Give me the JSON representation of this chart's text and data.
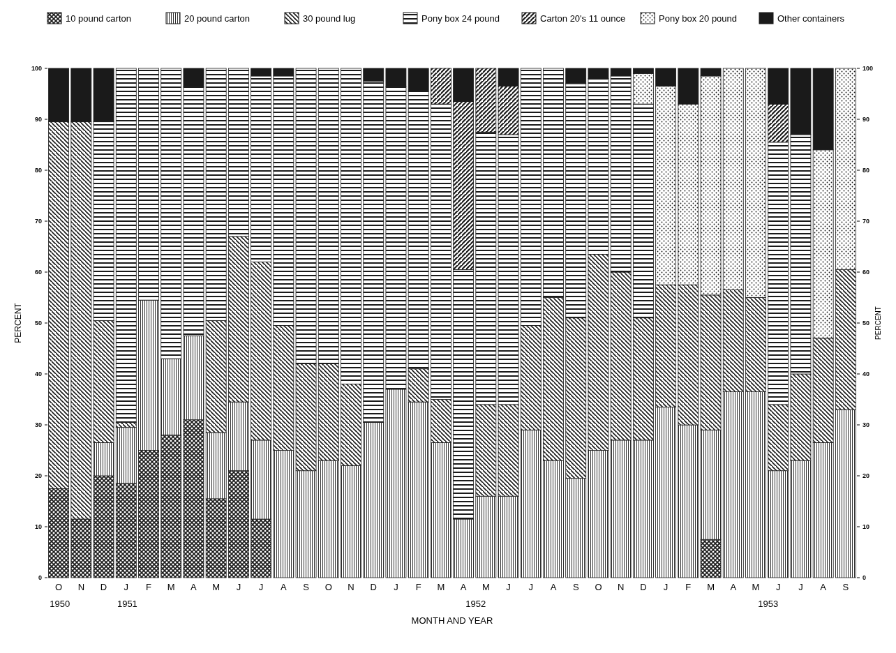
{
  "chart_data": {
    "type": "bar",
    "stacked": true,
    "xlabel": "MONTH AND YEAR",
    "ylabel": "PERCENT",
    "y2label": "PERCENT",
    "categories": [
      "O",
      "N",
      "D",
      "J",
      "F",
      "M",
      "A",
      "M",
      "J",
      "J",
      "A",
      "S",
      "O",
      "N",
      "D",
      "J",
      "F",
      "M",
      "A",
      "M",
      "J",
      "J",
      "A",
      "S",
      "O",
      "N",
      "D",
      "J",
      "F",
      "M",
      "A",
      "M",
      "J",
      "J",
      "A",
      "S"
    ],
    "ylim": [
      0,
      100
    ],
    "yticks": [
      0,
      10,
      20,
      30,
      40,
      50,
      60,
      70,
      80,
      90,
      100
    ],
    "y2lim": [
      0,
      100
    ],
    "y2ticks": [
      0,
      10,
      20,
      30,
      40,
      50,
      60,
      70,
      80,
      90,
      100
    ],
    "legend": "top",
    "grid": false,
    "annotations": [
      "1950",
      "1951",
      "1952",
      "1953"
    ],
    "series": [
      {
        "name": "10 pound carton",
        "color": "#1a1a1a",
        "values": [
          17.5,
          11.5,
          20,
          18.5,
          25,
          28,
          31,
          15.5,
          21,
          11.5,
          0,
          0,
          0,
          0,
          0,
          0,
          0,
          0,
          0,
          0,
          0,
          0,
          0,
          0,
          0,
          0,
          0,
          0,
          0,
          7.5,
          0,
          0,
          0,
          0,
          0,
          0
        ]
      },
      {
        "name": "20 pound carton",
        "color": "#1a1a1a",
        "values": [
          0,
          0,
          6.5,
          11,
          29.5,
          15,
          16.5,
          13,
          13.5,
          15.5,
          25,
          21,
          23,
          22,
          30.5,
          37,
          34.5,
          26.5,
          11.5,
          16,
          16,
          29,
          23,
          19.5,
          25,
          27,
          27,
          33.5,
          30,
          21.5,
          36.5,
          36.5,
          21,
          23,
          26.5,
          33
        ]
      },
      {
        "name": "30 pound lug",
        "color": "#1a1a1a",
        "values": [
          72,
          78,
          24,
          1,
          0,
          0,
          0,
          22,
          32.5,
          35,
          24.5,
          21,
          19,
          16,
          0,
          0,
          6.5,
          8.5,
          0,
          18,
          18,
          20.5,
          32,
          31.5,
          38.5,
          33,
          24,
          24,
          27.5,
          26.5,
          20,
          18.5,
          13,
          17,
          20.5,
          27.5
        ]
      },
      {
        "name": "Pony box 24 pound",
        "color": "#1a1a1a",
        "values": [
          0,
          0,
          39,
          69.5,
          45.5,
          57,
          49,
          49.5,
          33,
          36.5,
          49,
          58,
          58,
          62,
          67,
          59.5,
          54.5,
          58,
          49,
          53.5,
          53,
          50.5,
          45,
          46,
          34.5,
          38.5,
          42,
          0,
          0,
          0,
          0,
          0,
          51.5,
          47,
          0,
          0
        ]
      },
      {
        "name": "Carton 20's 11 ounce",
        "color": "#1a1a1a",
        "values": [
          0,
          0,
          0,
          0,
          0,
          0,
          0,
          0,
          0,
          0,
          0,
          0,
          0,
          0,
          0,
          0,
          0,
          7,
          33,
          12.5,
          9.5,
          0,
          0,
          0,
          0,
          0,
          0,
          0,
          0,
          0,
          0,
          0,
          7.5,
          0,
          0,
          0
        ]
      },
      {
        "name": "Pony box 20 pound",
        "color": "#1a1a1a",
        "values": [
          0,
          0,
          0,
          0,
          0,
          0,
          0,
          0,
          0,
          0,
          0,
          0,
          0,
          0,
          0,
          0,
          0,
          0,
          0,
          0,
          0,
          0,
          0,
          0,
          0,
          0,
          6,
          39,
          35.5,
          43,
          43.5,
          45,
          0,
          0,
          37,
          39.5
        ]
      },
      {
        "name": "Other containers",
        "color": "#1a1a1a",
        "values": [
          10.5,
          10.5,
          10.5,
          0,
          0,
          0,
          3.5,
          0,
          0,
          1.5,
          1.5,
          0,
          0,
          0,
          2.5,
          3.5,
          4.5,
          0,
          6.5,
          0,
          3.5,
          0,
          0,
          3,
          2,
          1.5,
          1,
          3.5,
          7,
          1.5,
          0,
          0,
          7,
          13,
          16,
          0
        ]
      }
    ]
  }
}
